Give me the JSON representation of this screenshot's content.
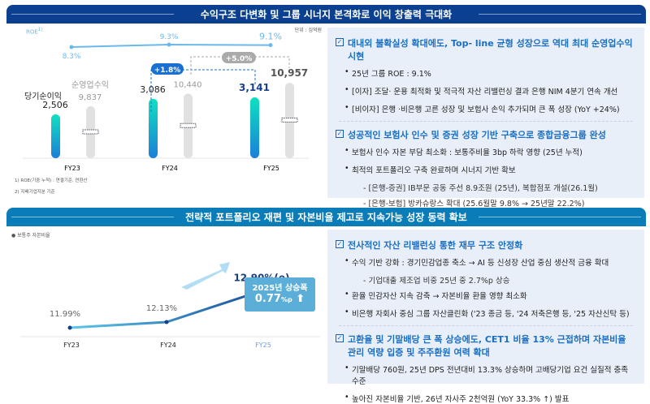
{
  "section1": {
    "title": "수익구조 다변화 및 그룹 시너지 본격화로 이익 창출력 극대화",
    "unit": "단위 : 십억원",
    "roe_label": "ROE",
    "roe_sup": "1)",
    "legend_net": "당기순이익",
    "legend_rev": "순영업수익",
    "growth_net": "+1.8%",
    "growth_rev": "+5.0%",
    "footnotes": [
      "1) ROE(기중 누적) : 연결기준, 연환산",
      "2) 지배기업지분 기준"
    ]
  },
  "section2": {
    "title": "전략적 포트폴리오 재편 및 자본비율 제고로  지속가능 성장 동력 확보",
    "legend": "보통주 자본비율",
    "callout_title": "2025년 상승폭",
    "callout_value": "0.77",
    "callout_unit": "%p"
  },
  "chart_data": [
    {
      "type": "bar",
      "categories": [
        "FY23",
        "FY24",
        "FY25"
      ],
      "series": [
        {
          "name": "당기순이익",
          "values": [
            2506,
            3086,
            3141
          ],
          "labels": [
            "2,506",
            "3,086",
            "3,141"
          ]
        },
        {
          "name": "순영업수익",
          "values": [
            9837,
            10440,
            10957
          ],
          "labels": [
            "9,837",
            "10,440",
            "10,957"
          ]
        }
      ],
      "roe": {
        "name": "ROE",
        "values": [
          8.3,
          9.3,
          9.1
        ],
        "labels": [
          "8.3%",
          "9.3%",
          "9.1%"
        ]
      },
      "colors": {
        "net": "#16c8c0",
        "rev": "#e1e1e1",
        "roe": "#6bb8ea"
      }
    },
    {
      "type": "line",
      "categories": [
        "FY23",
        "FY24",
        "FY25"
      ],
      "series": [
        {
          "name": "보통주 자본비율",
          "values": [
            11.99,
            12.13,
            12.9
          ],
          "labels": [
            "11.99%",
            "12.13%",
            "12.90%(e)"
          ]
        }
      ],
      "colors": {
        "line": "#1a5fa8"
      }
    }
  ],
  "panel1": {
    "groups": [
      {
        "heading": "대내외 불확실성 확대에도, Top- line 균형 성장으로 역대 최대 순영업수익 시현",
        "items": [
          {
            "t": "b",
            "text": "25년 그룹 ROE : 9.1%"
          },
          {
            "t": "b",
            "text": "[이자] 조달· 운용 최적화 및 적극적 자산 리밸런싱 결과 은행 NIM 4분기 연속 개선"
          },
          {
            "t": "b",
            "text": "[비이자] 은행 ·비은행 고른 성장 및 보험사 손익 추가되며 큰 폭 성장 (YoY +24%)"
          }
        ]
      },
      {
        "heading": "성공적인 보험사 인수 및 증권 성장 기반 구축으로 종합금융그룹 완성",
        "items": [
          {
            "t": "b",
            "text": "보험사 인수 자본 부담 최소화 : 보통주비율 3bp 하락 영향 (25년 누적)"
          },
          {
            "t": "b",
            "text": "최적의 포트폴리오 구축 완료하며 시너지 기반 확보"
          },
          {
            "t": "s",
            "text": "- [은행-증권] IB부문 공동 주선 8.9조원 (25년), 복합점포 개설(26.1월)"
          },
          {
            "t": "s",
            "text": "- [은행-보험] 방카슈랑스 확대 (25.6월말 9.8% → 25년말 22.2%)"
          }
        ]
      }
    ]
  },
  "panel2": {
    "groups": [
      {
        "heading": "전사적인 자산 리밸런싱 통한 재무 구조 안정화",
        "items": [
          {
            "t": "b",
            "text": "수익 기반 강화 : 경기민감업종 축소 → AI 등 신성장 산업 중심 생산적 금융 확대"
          },
          {
            "t": "s",
            "text": "- 기업대출 제조업 비중 25년 중 2.7%p 상승"
          },
          {
            "t": "b",
            "text": "환율 민감자산 지속 감축 → 자본비율 환율 영향 최소화"
          },
          {
            "t": "b",
            "text": "비은행 자회사 중심 그룹 자산클린화 ('23 종금 등, '24 저축은행 등, '25 자산신탁 등)"
          }
        ]
      },
      {
        "heading": "고환율 및 기말배당 큰 폭 상승에도, CET1 비율 13% 근접하며 자본비율 관리 역량 입증 및 주주환원 여력 확대",
        "items": [
          {
            "t": "b",
            "text": "기말배당 760원, 25년 DPS 전년대비 13.3% 상승하며 고배당기업 요건 실질적 충족 수준"
          },
          {
            "t": "b",
            "text": "높아진 자본비율 기반,  26년 자사주 2천억원 (YoY 33.3% ↑) 발표"
          }
        ]
      }
    ]
  }
}
